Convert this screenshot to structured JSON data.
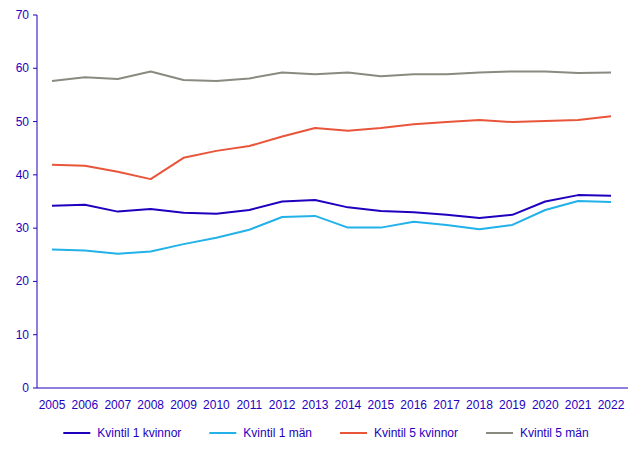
{
  "chart_data": {
    "type": "line",
    "categories": [
      "2005",
      "2006",
      "2007",
      "2008",
      "2009",
      "2010",
      "2011",
      "2012",
      "2013",
      "2014",
      "2015",
      "2016",
      "2017",
      "2018",
      "2019",
      "2020",
      "2021",
      "2022"
    ],
    "series": [
      {
        "name": "Kvintil 1 kvinnor",
        "color": "#1e00be",
        "values": [
          34.2,
          34.4,
          33.1,
          33.6,
          32.9,
          32.7,
          33.4,
          35.0,
          35.3,
          33.9,
          33.2,
          33.0,
          32.5,
          31.9,
          32.5,
          35.0,
          36.2,
          36.1
        ]
      },
      {
        "name": "Kvintil 1 män",
        "color": "#22b1e8",
        "values": [
          26.0,
          25.8,
          25.2,
          25.6,
          27.0,
          28.2,
          29.7,
          32.1,
          32.3,
          30.1,
          30.1,
          31.2,
          30.6,
          29.8,
          30.6,
          33.4,
          35.1,
          34.9
        ]
      },
      {
        "name": "Kvintil 5 kvinnor",
        "color": "#e8553a",
        "values": [
          41.9,
          41.7,
          40.6,
          39.2,
          43.2,
          44.5,
          45.4,
          47.2,
          48.8,
          48.3,
          48.8,
          49.5,
          49.9,
          50.3,
          49.9,
          50.1,
          50.3,
          51.0
        ]
      },
      {
        "name": "Kvintil 5 män",
        "color": "#8a8a80",
        "values": [
          57.6,
          58.3,
          58.0,
          59.4,
          57.8,
          57.6,
          58.1,
          59.2,
          58.9,
          59.2,
          58.5,
          58.9,
          58.9,
          59.2,
          59.4,
          59.4,
          59.1,
          59.2
        ]
      }
    ],
    "ylim": [
      0,
      70
    ],
    "yticks": [
      0,
      10,
      20,
      30,
      40,
      50,
      60,
      70
    ],
    "grid": false,
    "legend": "bottom"
  }
}
